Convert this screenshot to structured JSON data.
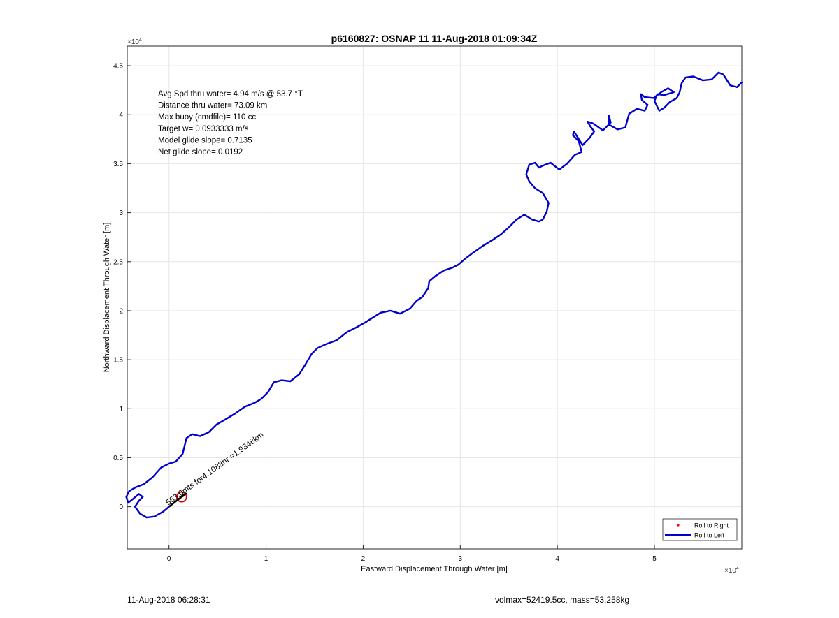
{
  "chart_data": {
    "type": "line",
    "title": "p6160827: OSNAP 11 11-Aug-2018 01:09:34Z",
    "xlabel": "Eastward Displacement Through Water [m]",
    "ylabel": "Northward Displacement Through Water [m]",
    "x_exponent": "×10",
    "x_exponent_power": "4",
    "y_exponent": "×10",
    "y_exponent_power": "4",
    "xlim": [
      -4300,
      59000
    ],
    "ylim": [
      -4300,
      47000
    ],
    "xticks": [
      0,
      10000,
      20000,
      30000,
      40000,
      50000
    ],
    "xtick_labels": [
      "0",
      "1",
      "2",
      "3",
      "4",
      "5"
    ],
    "yticks": [
      0,
      5000,
      10000,
      15000,
      20000,
      25000,
      30000,
      35000,
      40000,
      45000
    ],
    "ytick_labels": [
      "0",
      "0.5",
      "1",
      "1.5",
      "2",
      "2.5",
      "3",
      "3.5",
      "4",
      "4.5"
    ],
    "grid": true,
    "legend_position": "bottom-right",
    "stats_lines": [
      "Avg Spd thru water=  4.94 m/s @  53.7 °T",
      "Distance thru water= 73.09 km",
      "Max buoy (cmdfile)= 110 cc",
      "Target w= 0.0933333 m/s",
      "Model glide slope= 0.7135",
      "Net glide slope= 0.0192"
    ],
    "annotation": "563.0mts for4.1088hr =1.9348km",
    "series": [
      {
        "name": "Roll to Right",
        "style": "dots",
        "color": "#ff0000",
        "x": [
          900,
          1400
        ],
        "y": [
          800,
          1100
        ]
      },
      {
        "name": "Roll to Left",
        "style": "line",
        "color": "#0000cc",
        "x": [
          0,
          -600,
          -1500,
          -2300,
          -3000,
          -3500,
          -3100,
          -2700,
          -3100,
          -3700,
          -4200,
          -4400,
          -4100,
          -3400,
          -2600,
          -1700,
          -800,
          0,
          700,
          1400,
          1800,
          2400,
          3200,
          4100,
          4900,
          5800,
          6800,
          7800,
          8800,
          9500,
          10200,
          10800,
          11600,
          12500,
          13400,
          14100,
          14700,
          15300,
          16200,
          17300,
          18300,
          19300,
          20200,
          21000,
          21800,
          22800,
          23800,
          24800,
          25500,
          26100,
          26700,
          26800,
          27400,
          28300,
          29200,
          29800,
          30500,
          31300,
          32300,
          33300,
          34200,
          35000,
          35800,
          36600,
          37400,
          38100,
          38500,
          38900,
          39100,
          38500,
          37700,
          37100,
          36800,
          37100,
          37700,
          38100,
          38500,
          39300,
          40200,
          41000,
          41800,
          42500,
          42200,
          41600,
          41700,
          42600,
          43300,
          43800,
          43400,
          43100,
          43700,
          44700,
          45500,
          45300,
          45300,
          46200,
          47000,
          47200,
          47400,
          48200,
          49000,
          49300,
          48700,
          48600,
          49000,
          49900,
          50700,
          51400,
          52000,
          51000,
          50300,
          50000,
          50500,
          51000,
          51600,
          52300,
          52600,
          52800,
          53200,
          54000,
          55000,
          55900,
          56600,
          57100,
          57800,
          58500,
          59000
        ],
        "y": [
          0,
          -500,
          -1000,
          -1100,
          -700,
          0,
          600,
          1000,
          1300,
          800,
          400,
          1000,
          1600,
          2000,
          2300,
          3000,
          4000,
          4400,
          4600,
          5400,
          7000,
          7400,
          7200,
          7600,
          8400,
          8900,
          9500,
          10200,
          10600,
          11000,
          11700,
          12700,
          12900,
          12800,
          13500,
          14600,
          15600,
          16200,
          16600,
          17000,
          17800,
          18300,
          18800,
          19300,
          19800,
          20000,
          19700,
          20200,
          21000,
          21400,
          22300,
          23000,
          23500,
          24100,
          24400,
          24700,
          25300,
          25900,
          26600,
          27200,
          27800,
          28500,
          29300,
          29800,
          29300,
          29100,
          29300,
          30100,
          31000,
          32000,
          32500,
          33200,
          33900,
          34900,
          35100,
          34600,
          34800,
          35100,
          34400,
          35000,
          35900,
          36200,
          37300,
          37900,
          38300,
          36900,
          37600,
          38300,
          38800,
          39300,
          39100,
          38400,
          39200,
          39900,
          39000,
          38500,
          38700,
          39400,
          40100,
          40600,
          40400,
          41000,
          41500,
          42100,
          41800,
          41700,
          42300,
          42700,
          42300,
          42000,
          42100,
          41400,
          40400,
          40700,
          41300,
          41700,
          42300,
          43200,
          43800,
          43900,
          43500,
          43600,
          44300,
          44100,
          43000,
          42800,
          43300
        ]
      }
    ],
    "stamp_left": "11-Aug-2018 06:28:31",
    "stamp_right": "volmax=52419.5cc, mass=53.258kg"
  }
}
